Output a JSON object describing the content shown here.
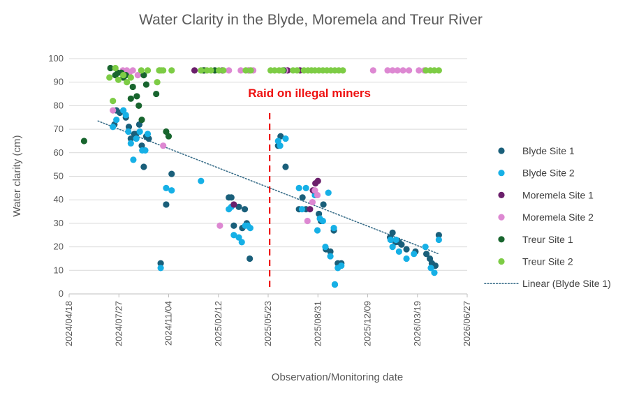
{
  "chart_data": {
    "type": "scatter",
    "title": "Water Clarity in the Blyde, Moremela and Treur River",
    "xlabel": "Observation/Monitoring date",
    "ylabel": "Water clarity (cm)",
    "ylim": [
      0,
      100
    ],
    "yticks": [
      0,
      10,
      20,
      30,
      40,
      50,
      60,
      70,
      80,
      90,
      100
    ],
    "xlim": [
      "2024-04-18",
      "2026-06-27"
    ],
    "xticks": [
      "2024/04/18",
      "2024/07/27",
      "2024/11/04",
      "2025/02/12",
      "2025/05/23",
      "2025/08/31",
      "2025/12/09",
      "2026/03/19",
      "2026/06/27"
    ],
    "grid": "horizontal",
    "legend_position": "right",
    "series": [
      {
        "name": "Blyde Site 1",
        "color": "#1a5f7a",
        "points": [
          [
            "2024-07-18",
            72
          ],
          [
            "2024-07-22",
            78
          ],
          [
            "2024-07-29",
            77
          ],
          [
            "2024-08-10",
            75
          ],
          [
            "2024-08-16",
            71
          ],
          [
            "2024-08-20",
            66
          ],
          [
            "2024-08-27",
            68
          ],
          [
            "2024-08-31",
            68
          ],
          [
            "2024-09-06",
            72
          ],
          [
            "2024-09-11",
            63
          ],
          [
            "2024-09-15",
            54
          ],
          [
            "2024-09-20",
            67
          ],
          [
            "2024-09-25",
            66
          ],
          [
            "2024-10-19",
            13
          ],
          [
            "2024-10-30",
            38
          ],
          [
            "2024-11-10",
            51
          ],
          [
            "2025-03-05",
            41
          ],
          [
            "2025-03-10",
            41
          ],
          [
            "2025-03-15",
            29
          ],
          [
            "2025-03-25",
            37
          ],
          [
            "2025-04-01",
            28
          ],
          [
            "2025-04-06",
            36
          ],
          [
            "2025-04-10",
            30
          ],
          [
            "2025-04-16",
            15
          ],
          [
            "2025-06-12",
            63
          ],
          [
            "2025-06-17",
            67
          ],
          [
            "2025-06-27",
            54
          ],
          [
            "2025-07-24",
            36
          ],
          [
            "2025-07-31",
            41
          ],
          [
            "2025-08-07",
            36
          ],
          [
            "2025-09-02",
            34
          ],
          [
            "2025-09-06",
            31
          ],
          [
            "2025-09-11",
            38
          ],
          [
            "2025-09-16",
            19
          ],
          [
            "2025-09-25",
            18
          ],
          [
            "2025-10-02",
            27
          ],
          [
            "2025-10-04",
            4
          ],
          [
            "2025-10-10",
            13
          ],
          [
            "2025-10-17",
            13
          ],
          [
            "2026-01-23",
            24
          ],
          [
            "2026-01-28",
            26
          ],
          [
            "2026-02-03",
            22
          ],
          [
            "2026-02-10",
            22
          ],
          [
            "2026-02-15",
            21
          ],
          [
            "2026-02-25",
            19
          ],
          [
            "2026-03-15",
            18
          ],
          [
            "2026-04-06",
            17
          ],
          [
            "2026-04-13",
            15
          ],
          [
            "2026-04-17",
            13
          ],
          [
            "2026-04-24",
            12
          ],
          [
            "2026-05-01",
            25
          ]
        ]
      },
      {
        "name": "Blyde Site 2",
        "color": "#16b0e6",
        "points": [
          [
            "2024-07-15",
            71
          ],
          [
            "2024-07-22",
            74
          ],
          [
            "2024-08-05",
            78
          ],
          [
            "2024-08-10",
            76
          ],
          [
            "2024-08-15",
            69
          ],
          [
            "2024-08-20",
            64
          ],
          [
            "2024-08-25",
            57
          ],
          [
            "2024-08-31",
            66
          ],
          [
            "2024-09-07",
            69
          ],
          [
            "2024-09-12",
            61
          ],
          [
            "2024-09-18",
            61
          ],
          [
            "2024-09-23",
            68
          ],
          [
            "2024-10-19",
            11
          ],
          [
            "2024-10-30",
            45
          ],
          [
            "2024-11-10",
            44
          ],
          [
            "2025-01-08",
            48
          ],
          [
            "2025-03-05",
            36
          ],
          [
            "2025-03-10",
            37
          ],
          [
            "2025-03-15",
            25
          ],
          [
            "2025-03-25",
            24
          ],
          [
            "2025-03-31",
            22
          ],
          [
            "2025-04-07",
            29
          ],
          [
            "2025-04-12",
            29
          ],
          [
            "2025-04-17",
            28
          ],
          [
            "2025-06-12",
            65
          ],
          [
            "2025-06-16",
            63
          ],
          [
            "2025-06-27",
            66
          ],
          [
            "2025-07-24",
            45
          ],
          [
            "2025-07-30",
            36
          ],
          [
            "2025-08-07",
            45
          ],
          [
            "2025-08-25",
            42
          ],
          [
            "2025-08-30",
            27
          ],
          [
            "2025-09-04",
            32
          ],
          [
            "2025-09-10",
            31
          ],
          [
            "2025-09-15",
            20
          ],
          [
            "2025-09-21",
            43
          ],
          [
            "2025-09-25",
            16
          ],
          [
            "2025-10-02",
            28
          ],
          [
            "2025-10-04",
            4
          ],
          [
            "2025-10-10",
            11
          ],
          [
            "2025-10-17",
            12
          ],
          [
            "2026-01-24",
            23
          ],
          [
            "2026-01-28",
            20
          ],
          [
            "2026-02-04",
            23
          ],
          [
            "2026-02-10",
            18
          ],
          [
            "2026-02-25",
            15
          ],
          [
            "2026-03-12",
            17
          ],
          [
            "2026-04-04",
            20
          ],
          [
            "2026-04-15",
            11
          ],
          [
            "2026-04-22",
            9
          ],
          [
            "2026-05-01",
            23
          ]
        ]
      },
      {
        "name": "Moremela Site 1",
        "color": "#6b1f6b",
        "points": [
          [
            "2024-12-26",
            95
          ],
          [
            "2025-01-15",
            95
          ],
          [
            "2025-02-20",
            95
          ],
          [
            "2025-03-15",
            38
          ],
          [
            "2025-04-14",
            95
          ],
          [
            "2025-07-01",
            95
          ],
          [
            "2025-07-26",
            95
          ],
          [
            "2025-08-15",
            36
          ],
          [
            "2025-08-21",
            44
          ],
          [
            "2025-08-26",
            47
          ],
          [
            "2025-08-31",
            48
          ]
        ]
      },
      {
        "name": "Moremela Site 2",
        "color": "#dd88d2",
        "points": [
          [
            "2024-07-15",
            78
          ],
          [
            "2024-08-04",
            95
          ],
          [
            "2024-08-12",
            95
          ],
          [
            "2024-08-17",
            94
          ],
          [
            "2024-08-24",
            95
          ],
          [
            "2024-09-03",
            93
          ],
          [
            "2024-10-17",
            95
          ],
          [
            "2024-10-24",
            63
          ],
          [
            "2025-01-12",
            95
          ],
          [
            "2025-02-04",
            95
          ],
          [
            "2025-02-15",
            29
          ],
          [
            "2025-03-05",
            95
          ],
          [
            "2025-03-29",
            95
          ],
          [
            "2025-04-14",
            95
          ],
          [
            "2025-04-23",
            95
          ],
          [
            "2025-06-26",
            95
          ],
          [
            "2025-08-10",
            31
          ],
          [
            "2025-08-20",
            39
          ],
          [
            "2025-08-25",
            44
          ],
          [
            "2025-08-30",
            42
          ],
          [
            "2025-12-20",
            95
          ],
          [
            "2026-01-18",
            95
          ],
          [
            "2026-01-28",
            95
          ],
          [
            "2026-02-07",
            95
          ],
          [
            "2026-02-18",
            95
          ],
          [
            "2026-03-02",
            95
          ],
          [
            "2026-03-22",
            95
          ],
          [
            "2026-04-02",
            95
          ]
        ]
      },
      {
        "name": "Treur Site 1",
        "color": "#18652e",
        "points": [
          [
            "2024-05-18",
            65
          ],
          [
            "2024-07-10",
            96
          ],
          [
            "2024-07-20",
            93
          ],
          [
            "2024-07-25",
            94
          ],
          [
            "2024-08-01",
            94
          ],
          [
            "2024-08-05",
            92
          ],
          [
            "2024-08-10",
            93
          ],
          [
            "2024-08-20",
            83
          ],
          [
            "2024-08-24",
            88
          ],
          [
            "2024-09-01",
            84
          ],
          [
            "2024-09-05",
            80
          ],
          [
            "2024-09-11",
            74
          ],
          [
            "2024-09-15",
            93
          ],
          [
            "2024-09-20",
            89
          ],
          [
            "2024-10-10",
            85
          ],
          [
            "2024-10-30",
            69
          ],
          [
            "2024-11-04",
            67
          ],
          [
            "2025-01-13",
            95
          ],
          [
            "2025-02-05",
            95
          ],
          [
            "2025-06-23",
            95
          ]
        ]
      },
      {
        "name": "Treur Site 2",
        "color": "#7dcc45",
        "points": [
          [
            "2024-07-08",
            92
          ],
          [
            "2024-07-15",
            82
          ],
          [
            "2024-07-20",
            96
          ],
          [
            "2024-07-26",
            91
          ],
          [
            "2024-08-05",
            93
          ],
          [
            "2024-08-12",
            90
          ],
          [
            "2024-08-20",
            92
          ],
          [
            "2024-09-10",
            95
          ],
          [
            "2024-09-23",
            95
          ],
          [
            "2024-10-12",
            90
          ],
          [
            "2024-10-16",
            95
          ],
          [
            "2024-10-20",
            95
          ],
          [
            "2024-10-24",
            95
          ],
          [
            "2024-11-10",
            95
          ],
          [
            "2025-01-08",
            95
          ],
          [
            "2025-01-20",
            95
          ],
          [
            "2025-01-28",
            95
          ],
          [
            "2025-02-13",
            95
          ],
          [
            "2025-02-22",
            95
          ],
          [
            "2025-04-08",
            95
          ],
          [
            "2025-04-18",
            95
          ],
          [
            "2025-05-28",
            95
          ],
          [
            "2025-06-05",
            95
          ],
          [
            "2025-06-14",
            95
          ],
          [
            "2025-06-21",
            95
          ],
          [
            "2025-07-12",
            95
          ],
          [
            "2025-07-20",
            95
          ],
          [
            "2025-08-03",
            95
          ],
          [
            "2025-08-11",
            95
          ],
          [
            "2025-08-18",
            95
          ],
          [
            "2025-08-25",
            95
          ],
          [
            "2025-09-02",
            95
          ],
          [
            "2025-09-10",
            95
          ],
          [
            "2025-09-18",
            95
          ],
          [
            "2025-09-26",
            95
          ],
          [
            "2025-10-04",
            95
          ],
          [
            "2025-10-12",
            95
          ],
          [
            "2025-10-20",
            95
          ],
          [
            "2026-04-05",
            95
          ],
          [
            "2026-04-14",
            95
          ],
          [
            "2026-04-22",
            95
          ],
          [
            "2026-05-01",
            95
          ]
        ]
      }
    ],
    "trendline": {
      "name": "Linear (Blyde Site 1)",
      "color": "#3b6f8a",
      "style": "dotted",
      "from": [
        "2024-06-15",
        73.5
      ],
      "to": [
        "2026-05-01",
        17
      ]
    },
    "annotation": {
      "text": "Raid on illegal miners",
      "date": "2025-05-26",
      "color": "#ee1111",
      "style": "dashed vertical line"
    }
  }
}
